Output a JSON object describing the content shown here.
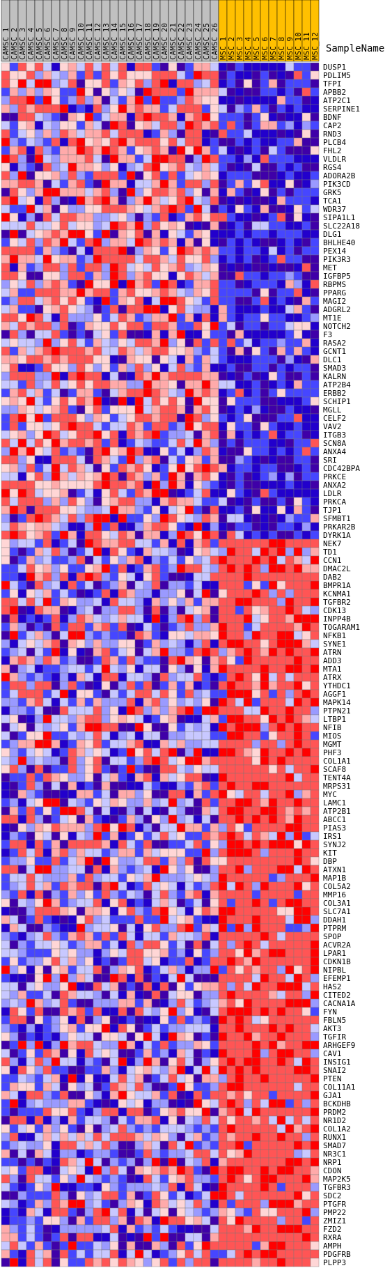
{
  "chart_data": {
    "type": "heatmap",
    "row_header": "SampleName",
    "groups": [
      {
        "name": "CAMSC",
        "color": "#c0c0c0",
        "count": 26
      },
      {
        "name": "MSC",
        "color": "#ffc000",
        "count": 12
      }
    ],
    "columns": [
      "CAMSC_1",
      "CAMSC_2",
      "CAMSC_3",
      "CAMSC_4",
      "CAMSC_5",
      "CAMSC_6",
      "CAMSC_7",
      "CAMSC_8",
      "CAMSC_9",
      "CAMSC_10",
      "CAMSC_11",
      "CAMSC_12",
      "CAMSC_13",
      "CAMSC_14",
      "CAMSC_15",
      "CAMSC_16",
      "CAMSC_17",
      "CAMSC_18",
      "CAMSC_19",
      "CAMSC_20",
      "CAMSC_21",
      "CAMSC_22",
      "CAMSC_23",
      "CAMSC_24",
      "CAMSC_25",
      "CAMSC_26",
      "MSC_1",
      "MSC_2",
      "MSC_3",
      "MSC_4",
      "MSC_5",
      "MSC_6",
      "MSC_7",
      "MSC_8",
      "MSC_9",
      "MSC_10",
      "MSC_11",
      "MSC_12"
    ],
    "rows": [
      "DUSP1",
      "PDLIM5",
      "TFPI",
      "APBB2",
      "ATP2C1",
      "SERPINE1",
      "BDNF",
      "CAP2",
      "RND3",
      "PLCB4",
      "FHL2",
      "VLDLR",
      "RGS4",
      "ADORA2B",
      "PIK3CD",
      "GRK5",
      "TCA1",
      "WDR37",
      "SIPA1L1",
      "SLC22A18",
      "DLG1",
      "BHLHE40",
      "PEX14",
      "PIK3R3",
      "MET",
      "IGFBP5",
      "RBPMS",
      "PPARG",
      "MAGI2",
      "ADGRL2",
      "MT1E",
      "NOTCH2",
      "F3",
      "RASA2",
      "GCNT1",
      "DLC1",
      "SMAD3",
      "KALRN",
      "ATP2B4",
      "ERBB2",
      "SCHIP1",
      "MGLL",
      "CELF2",
      "VAV2",
      "ITGB3",
      "SCN8A",
      "ANXA4",
      "SRI",
      "CDC42BPA",
      "PRKCE",
      "ANXA2",
      "LDLR",
      "PRKCA",
      "TJP1",
      "SFMBT1",
      "PRKAR2B",
      "DYRK1A",
      "NEK7",
      "TD1",
      "CCN1",
      "DMAC2L",
      "DAB2",
      "BMPR1A",
      "KCNMA1",
      "TGFBR2",
      "CDK13",
      "INPP4B",
      "TOGARAM1",
      "NFKB1",
      "SYNE1",
      "ATRN",
      "ADD3",
      "MTA1",
      "ATRX",
      "YTHDC1",
      "AGGF1",
      "MAPK14",
      "PTPN21",
      "LTBP1",
      "NFIB",
      "MIOS",
      "MGMT",
      "PHF3",
      "COL1A1",
      "SCAF8",
      "TENT4A",
      "MRPS31",
      "MYC",
      "LAMC1",
      "ATP2B1",
      "ABCC1",
      "PIAS3",
      "IRS1",
      "SYNJ2",
      "KIT",
      "DBP",
      "ATXN1",
      "MAP1B",
      "COL5A2",
      "MMP16",
      "COL3A1",
      "SLC7A1",
      "DDAH1",
      "PTPRM",
      "SPOP",
      "ACVR2A",
      "LPAR1",
      "CDKN1B",
      "NIPBL",
      "EFEMP1",
      "HAS2",
      "CITED2",
      "CACNA1A",
      "FYN",
      "FBLN5",
      "AKT3",
      "TGFIR",
      "ARHGEF9",
      "CAV1",
      "INSIG1",
      "SNAI2",
      "PTEN",
      "COL11A1",
      "GJA1",
      "BCKDHB",
      "PRDM2",
      "NR1D2",
      "COL1A2",
      "RUNX1",
      "SMAD7",
      "NR3C1",
      "NRP1",
      "CDON",
      "MAP2K5",
      "TGFBR3",
      "SDC2",
      "PTGFR",
      "PMP22",
      "ZMIZ1",
      "FZD2",
      "RXRA",
      "AMPH",
      "PDGFRB",
      "PLPP3"
    ],
    "split_row": 57,
    "palette": {
      "strong_red": "#ff0000",
      "red": "#ff5555",
      "pink": "#ffaaaa",
      "light_pink": "#ffd6d6",
      "pale_blue": "#c8c8ff",
      "light_blue": "#9a9aff",
      "blue": "#4646ff",
      "strong_blue": "#2200cc",
      "indigo": "#3f00a8"
    },
    "scale": "row-normalized expression, red = high, blue = low"
  }
}
